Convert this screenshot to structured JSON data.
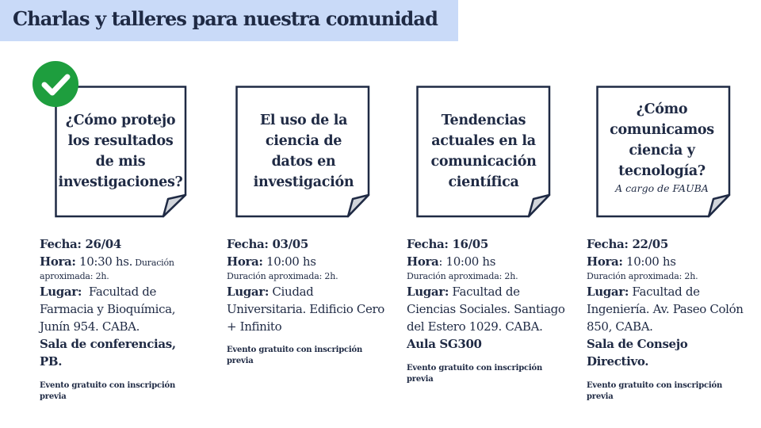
{
  "header": {
    "title": "Charlas y talleres para nuestra comunidad"
  },
  "colors": {
    "title_band": "#c9daf8",
    "text": "#1f2a44",
    "check": "#1e9e3e",
    "fold": "#d1d5db"
  },
  "icons": {
    "check": "check-circle-icon"
  },
  "cards": [
    {
      "title_lines": [
        "¿Cómo protejo",
        "los resultados",
        "de mis",
        "investigaciones?"
      ],
      "subtitle": "",
      "fecha_label": "Fecha:",
      "fecha_value": " 26/04",
      "hora_label": "Hora:",
      "hora_value": " 10:30 hs.",
      "duracion_inline": " Duración",
      "duracion": "aproximada: 2h.",
      "lugar_label": "Lugar:",
      "lugar_lines": [
        "  Facultad de",
        "Farmacia y Bioquímica,",
        "Junín 954. CABA."
      ],
      "sala": "Sala de conferencias, PB.",
      "note": "Evento gratuito con inscripción previa"
    },
    {
      "title_lines": [
        "El uso de la",
        "ciencia de",
        "datos en",
        "investigación"
      ],
      "subtitle": "",
      "fecha_label": "Fecha:",
      "fecha_value": " 03/05",
      "hora_label": "Hora:",
      "hora_value": " 10:00 hs",
      "duracion": "Duración aproximada: 2h.",
      "lugar_label": "Lugar:",
      "lugar_lines": [
        " Ciudad",
        "Universitaria. Edificio Cero",
        "+ Infinito"
      ],
      "sala": "",
      "note": "Evento gratuito con inscripción previa"
    },
    {
      "title_lines": [
        "Tendencias",
        "actuales en la",
        "comunicación",
        "científica"
      ],
      "subtitle": "",
      "fecha_label": "Fecha:",
      "fecha_value": " 16/05",
      "hora_label": "Hora",
      "hora_value": ": 10:00 hs",
      "duracion": "Duración aproximada: 2h.",
      "lugar_label": "Lugar:",
      "lugar_lines": [
        " Facultad de",
        "Ciencias Sociales. Santiago",
        "del Estero 1029. CABA."
      ],
      "sala": "Aula SG300",
      "note": "Evento gratuito con inscripción previa"
    },
    {
      "title_lines": [
        "¿Cómo",
        "comunicamos",
        "ciencia y",
        "tecnología?"
      ],
      "subtitle": "A cargo de FAUBA",
      "fecha_label": "Fecha:",
      "fecha_value": " 22/05",
      "hora_label": "Hora:",
      "hora_value": " 10:00 hs",
      "duracion": "Duración aproximada: 2h.",
      "lugar_label": "Lugar:",
      "lugar_lines": [
        " Facultad de",
        "Ingeniería. Av. Paseo Colón",
        "850, CABA."
      ],
      "sala": "Sala de Consejo Directivo.",
      "note": "Evento gratuito con inscripción previa"
    }
  ]
}
